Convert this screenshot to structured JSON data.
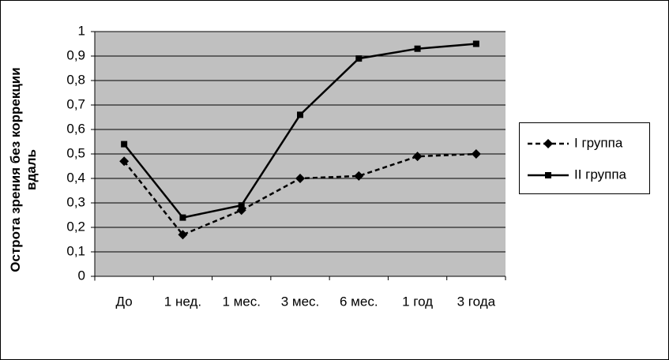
{
  "chart_data": {
    "type": "line",
    "y_label": "Острота зрения без коррекции вдаль",
    "categories": [
      "До",
      "1 нед.",
      "1 мес.",
      "3 мес.",
      "6 мес.",
      "1 год",
      "3 года"
    ],
    "series": [
      {
        "name": "I группа",
        "color": "#000000",
        "values": [
          0.47,
          0.17,
          0.27,
          0.4,
          0.41,
          0.49,
          0.5
        ]
      },
      {
        "name": "II группа",
        "color": "#000000",
        "values": [
          0.54,
          0.24,
          0.29,
          0.66,
          0.89,
          0.93,
          0.95
        ]
      }
    ],
    "ylim": [
      0,
      1
    ],
    "yticks": [
      0,
      {
        "value": 0.1,
        "label": "0,1"
      },
      {
        "value": 0.2,
        "label": "0,2"
      },
      {
        "value": 0.3,
        "label": "0,3"
      },
      {
        "value": 0.4,
        "label": "0,4"
      },
      {
        "value": 0.5,
        "label": "0,5"
      },
      {
        "value": 0.6,
        "label": "0,6"
      },
      {
        "value": 0.7,
        "label": "0,7"
      },
      {
        "value": 0.8,
        "label": "0,8"
      },
      {
        "value": 0.9,
        "label": "0,9"
      },
      1
    ],
    "grid": true,
    "plot_background": "#c0c0c0",
    "legend": "right"
  }
}
